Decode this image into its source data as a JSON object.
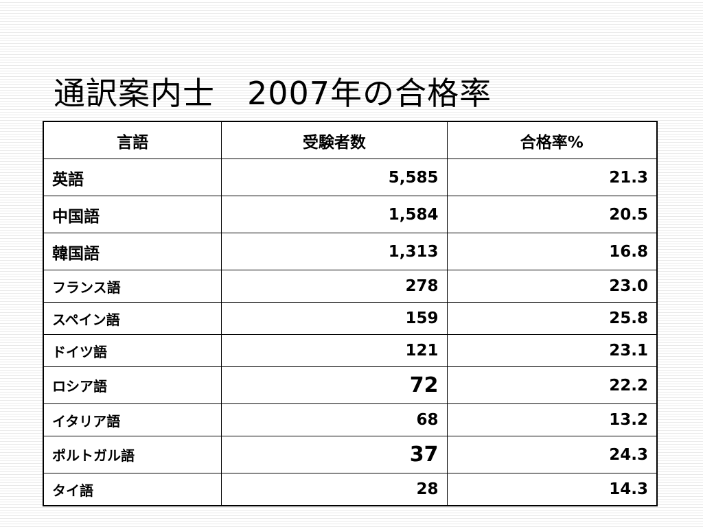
{
  "slide": {
    "title": "通訳案内士　2007年の合格率",
    "accent_color": "#cc1f1f"
  },
  "table": {
    "headers": [
      "言語",
      "受験者数",
      "合格率%"
    ],
    "rows": [
      {
        "language": "英語",
        "examinees": "5,585",
        "pass_rate": "21.3"
      },
      {
        "language": "中国語",
        "examinees": "1,584",
        "pass_rate": "20.5"
      },
      {
        "language": "韓国語",
        "examinees": "1,313",
        "pass_rate": "16.8"
      },
      {
        "language": "フランス語",
        "examinees": "278",
        "pass_rate": "23.0"
      },
      {
        "language": "スペイン語",
        "examinees": "159",
        "pass_rate": "25.8"
      },
      {
        "language": "ドイツ語",
        "examinees": "121",
        "pass_rate": "23.1"
      },
      {
        "language": "ロシア語",
        "examinees": "72",
        "pass_rate": "22.2"
      },
      {
        "language": "イタリア語",
        "examinees": "68",
        "pass_rate": "13.2"
      },
      {
        "language": "ポルトガル語",
        "examinees": "37",
        "pass_rate": "24.3"
      },
      {
        "language": "タイ語",
        "examinees": "28",
        "pass_rate": "14.3"
      }
    ]
  }
}
